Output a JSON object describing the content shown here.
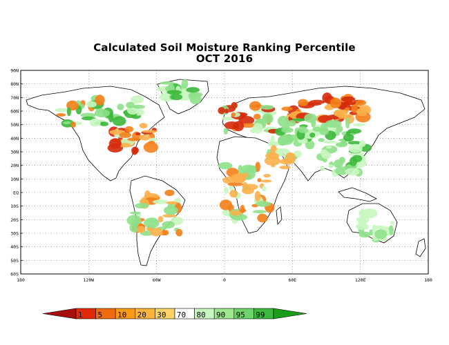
{
  "title": "Calculated Soil Moisture Ranking Percentile",
  "subtitle": "OCT 2016",
  "lat_labels": [
    "90N",
    "80N",
    "70N",
    "60N",
    "50N",
    "40N",
    "30N",
    "20N",
    "10N",
    "EQ",
    "10S",
    "20S",
    "30S",
    "40S",
    "50S",
    "60S"
  ],
  "lon_labels": [
    "180",
    "120W",
    "60W",
    "0",
    "60E",
    "120E",
    "180"
  ],
  "colorbar": {
    "labels": [
      "1",
      "5",
      "10",
      "20",
      "30",
      "70",
      "80",
      "90",
      "95",
      "99"
    ],
    "colors": [
      "#a50f0f",
      "#e02a0a",
      "#f06a10",
      "#f99a14",
      "#fcb53a",
      "#fdd267",
      "#ffffff",
      "#c8f7c0",
      "#9ee88e",
      "#6ed46a",
      "#3cb83c",
      "#1a9e1a"
    ]
  },
  "map_colors": {
    "dry_extreme": "#d42a0a",
    "dry": "#f4801a",
    "dry_mild": "#fbb04a",
    "wet_mild": "#c8f7c0",
    "wet": "#8ee08a",
    "wet_strong": "#3cb83c"
  }
}
